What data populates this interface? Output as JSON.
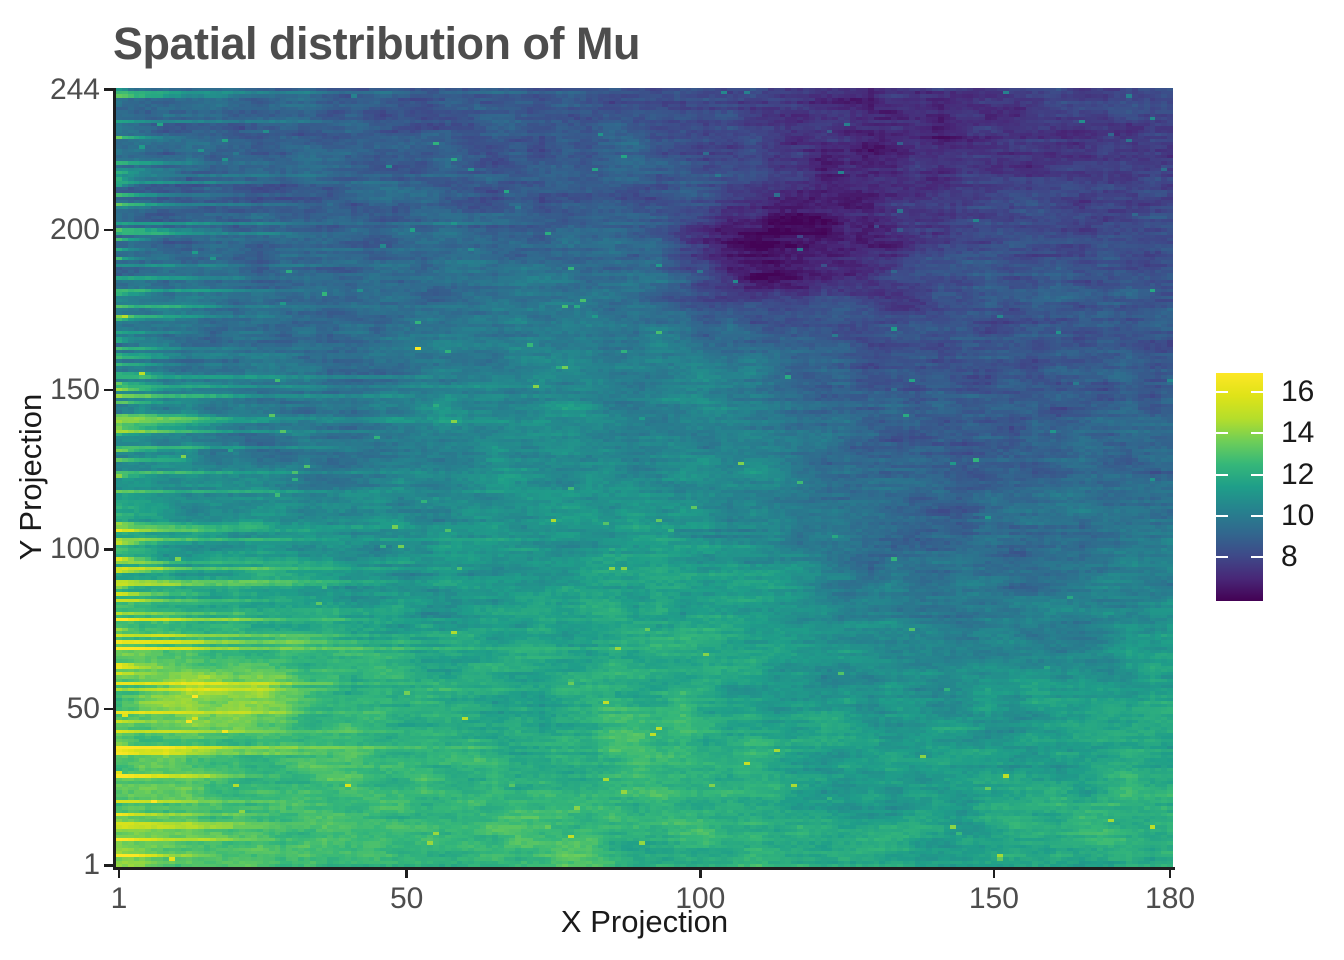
{
  "title": "Spatial distribution of Mu",
  "x_axis": {
    "label": "X Projection",
    "ticks": [
      1,
      50,
      100,
      150,
      180
    ],
    "range": [
      1,
      180
    ]
  },
  "y_axis": {
    "label": "Y Projection",
    "ticks": [
      1,
      50,
      100,
      150,
      200,
      244
    ],
    "range": [
      1,
      244
    ]
  },
  "legend": {
    "ticks": [
      16,
      14,
      12,
      10,
      8
    ],
    "orientation": "vertical",
    "position": "right"
  },
  "colors": {
    "background": "#ffffff",
    "title_text": "#4d4d4d",
    "axis_title_text": "#1a1a1a",
    "tick_text": "#4d4d4d",
    "axis_line": "#1e1e1e",
    "legend_tick_dash": "#ffffff"
  },
  "chart_data": {
    "type": "heatmap",
    "title": "Spatial distribution of Mu",
    "xlabel": "X Projection",
    "ylabel": "Y Projection",
    "x_range": [
      1,
      180
    ],
    "y_range": [
      1,
      244
    ],
    "grid": false,
    "legend_position": "right",
    "colormap": "viridis",
    "value_range": [
      5.9,
      16.9
    ],
    "colorbar_ticks": [
      8,
      10,
      12,
      14,
      16
    ],
    "viridis_stops": [
      "#440154",
      "#482878",
      "#3e4a89",
      "#31688e",
      "#26828e",
      "#1f9e89",
      "#35b779",
      "#6ece58",
      "#b5de2b",
      "#dfe318",
      "#fde725"
    ],
    "coarse_grid": {
      "description": "Approximate Mu values on a coarse grid read from the image; rows listed top (y=232) to bottom (y=12), columns left (x=7.5) to right (x=172.5)",
      "x_first_center": 7.5,
      "x_step": 15,
      "y_top_center": 232,
      "y_step": 24.444,
      "values": [
        [
          9.2,
          8.9,
          8.8,
          8.8,
          8.7,
          8.6,
          8.4,
          7.6,
          7.2,
          7.3,
          7.6,
          7.9
        ],
        [
          9.3,
          9.0,
          8.9,
          8.8,
          8.9,
          8.8,
          8.4,
          7.3,
          6.9,
          7.5,
          8.0,
          8.2
        ],
        [
          9.5,
          9.1,
          9.0,
          9.3,
          9.7,
          9.5,
          8.9,
          7.3,
          7.9,
          8.3,
          8.4,
          8.4
        ],
        [
          9.8,
          9.4,
          9.3,
          9.9,
          10.4,
          10.0,
          10.3,
          9.5,
          8.4,
          8.4,
          8.6,
          8.7
        ],
        [
          10.4,
          9.9,
          9.8,
          10.3,
          10.8,
          10.7,
          10.5,
          9.9,
          8.9,
          8.7,
          8.9,
          9.1
        ],
        [
          11.3,
          10.9,
          10.7,
          10.7,
          11.1,
          11.1,
          10.9,
          10.5,
          9.5,
          9.1,
          9.3,
          9.5
        ],
        [
          11.9,
          11.6,
          11.3,
          11.1,
          11.3,
          11.5,
          11.3,
          10.9,
          10.1,
          9.7,
          9.9,
          10.3
        ],
        [
          13.3,
          12.9,
          12.1,
          11.7,
          11.5,
          11.7,
          11.9,
          11.3,
          10.9,
          10.7,
          10.9,
          11.1
        ],
        [
          13.1,
          12.7,
          12.3,
          11.9,
          11.9,
          12.1,
          12.3,
          11.7,
          11.3,
          11.3,
          11.5,
          11.7
        ],
        [
          13.6,
          12.9,
          12.5,
          12.3,
          12.5,
          12.7,
          12.3,
          11.9,
          11.7,
          11.7,
          11.9,
          12.3
        ]
      ]
    },
    "features": {
      "left_edge_streaks": "bright horizontal streaks starting at x=1, dense over most rows, lengths ~2-40 cells",
      "dark_patch": {
        "x_center": 111,
        "y_center": 192,
        "approx_value": 6.8
      },
      "dark_region_top_right": {
        "x": [
          115,
          155
        ],
        "y": [
          215,
          244
        ],
        "approx_value": 7.0
      },
      "bright_blob_bottom_left": {
        "x_center": 20,
        "y_center": 53,
        "approx_value": 14.5
      },
      "hot_pixel": {
        "x": 52,
        "y": 163,
        "approx_value": 16.8
      }
    }
  }
}
